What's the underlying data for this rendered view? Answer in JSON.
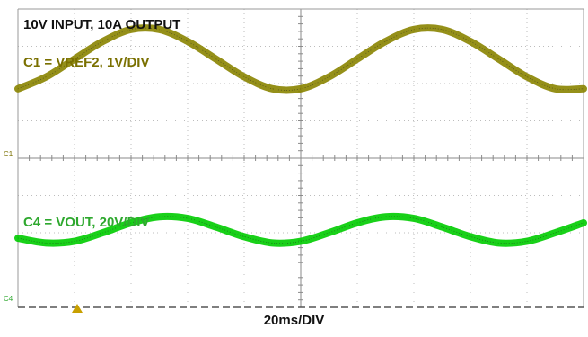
{
  "chart_data": {
    "type": "line",
    "title": "10V INPUT, 10A OUTPUT",
    "xlabel": "20ms/DIV",
    "ylabel": "",
    "time_per_div_ms": 20,
    "divisions": {
      "horizontal": 10,
      "vertical": 8
    },
    "grid": true,
    "x_unit": "ms",
    "x": [
      0,
      10,
      20,
      30,
      40,
      50,
      60,
      70,
      80,
      90,
      100,
      110,
      120,
      130,
      140,
      150,
      160,
      170,
      180,
      190,
      200
    ],
    "series": [
      {
        "name": "C1 = VREF2, 1V/DIV",
        "channel_marker": "C1",
        "color": "#8a8400",
        "label_color": "#7a7000",
        "volts_per_div": 1,
        "values": [
          1.86,
          2.18,
          2.66,
          3.13,
          3.45,
          3.45,
          3.13,
          2.66,
          2.18,
          1.86,
          1.86,
          2.18,
          2.66,
          3.13,
          3.45,
          3.45,
          3.13,
          2.66,
          2.18,
          1.86,
          1.86
        ]
      },
      {
        "name": "C4 = VOUT, 20V/DIV",
        "channel_marker": "C4",
        "color": "#00cc00",
        "label_color": "#2ea82e",
        "volts_per_div": 20,
        "values": [
          37.1,
          34.5,
          35.4,
          40.0,
          45.3,
          48.6,
          47.7,
          43.1,
          37.9,
          34.5,
          35.4,
          40.0,
          45.3,
          48.6,
          47.7,
          43.1,
          37.9,
          34.5,
          35.4,
          40.0,
          45.3
        ]
      }
    ]
  }
}
